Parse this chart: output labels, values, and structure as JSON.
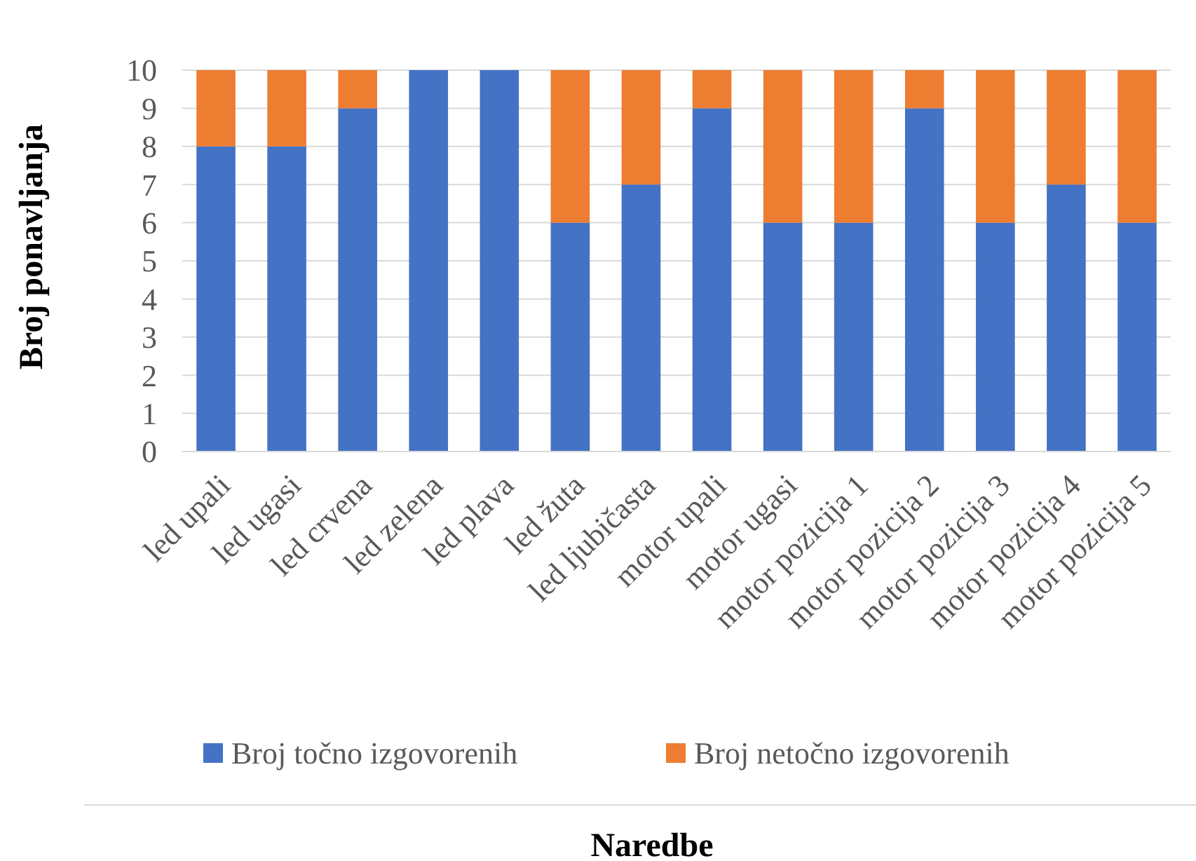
{
  "chart_data": {
    "type": "bar",
    "stacked": true,
    "annotations": [
      "Naredbe"
    ],
    "ylabel": "Broj ponavljanja",
    "categories": [
      "led upali",
      "led ugasi",
      "led crvena",
      "led zelena",
      "led plava",
      "led žuta",
      "led ljubičasta",
      "motor upali",
      "motor ugasi",
      "motor pozicija 1",
      "motor pozicija 2",
      "motor pozicija 3",
      "motor pozicija 4",
      "motor pozicija 5"
    ],
    "series": [
      {
        "name": "Broj točno izgovorenih",
        "color": "#4472c4",
        "values": [
          8,
          8,
          9,
          10,
          10,
          6,
          7,
          9,
          6,
          6,
          9,
          6,
          7,
          6
        ]
      },
      {
        "name": "Broj netočno izgovorenih",
        "color": "#ed7d31",
        "values": [
          2,
          2,
          1,
          0,
          0,
          4,
          3,
          1,
          4,
          4,
          1,
          4,
          3,
          4
        ]
      }
    ],
    "ylim": [
      0,
      10
    ],
    "yticks": [
      0,
      1,
      2,
      3,
      4,
      5,
      6,
      7,
      8,
      9,
      10
    ],
    "grid": "y",
    "legend": "bottom"
  }
}
